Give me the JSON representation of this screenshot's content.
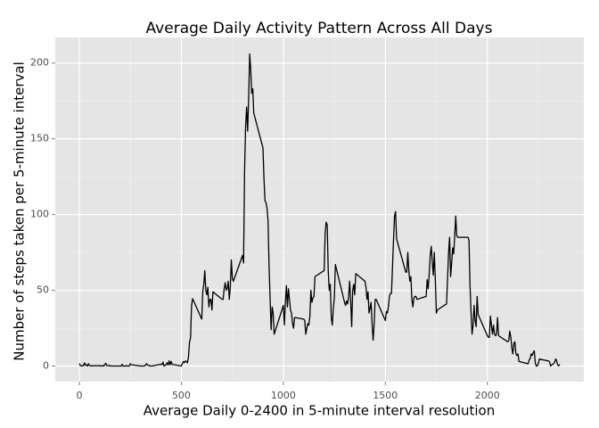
{
  "chart_data": {
    "type": "line",
    "title": "Average Daily Activity Pattern Across All Days",
    "xlabel": "Average Daily 0-2400 in 5-minute interval resolution",
    "ylabel": "Number of steps taken per 5-minute interval",
    "xlim": [
      -118,
      2473
    ],
    "ylim": [
      -10.3,
      216.9
    ],
    "xticks": [
      0,
      500,
      1000,
      1500,
      2000
    ],
    "yticks": [
      0,
      50,
      100,
      150,
      200
    ],
    "xminor": [
      250,
      750,
      1250,
      1750,
      2250
    ],
    "yminor": [
      25,
      75,
      125,
      175
    ],
    "grid": true,
    "series": [
      {
        "color": "#000000",
        "x": [
          0,
          5,
          10,
          15,
          20,
          25,
          30,
          35,
          40,
          45,
          50,
          55,
          100,
          105,
          110,
          115,
          120,
          125,
          130,
          135,
          140,
          145,
          150,
          155,
          200,
          205,
          210,
          215,
          220,
          225,
          230,
          235,
          240,
          245,
          250,
          255,
          300,
          305,
          310,
          315,
          320,
          325,
          330,
          335,
          340,
          345,
          350,
          355,
          400,
          405,
          410,
          415,
          420,
          425,
          430,
          435,
          440,
          445,
          450,
          455,
          500,
          505,
          510,
          515,
          520,
          525,
          530,
          535,
          540,
          545,
          550,
          555,
          600,
          605,
          610,
          615,
          620,
          625,
          630,
          635,
          640,
          645,
          650,
          655,
          700,
          705,
          710,
          715,
          720,
          725,
          730,
          735,
          740,
          745,
          750,
          755,
          800,
          805,
          810,
          815,
          820,
          825,
          830,
          835,
          840,
          845,
          850,
          855,
          900,
          905,
          910,
          915,
          920,
          925,
          930,
          935,
          940,
          945,
          950,
          955,
          1000,
          1005,
          1010,
          1015,
          1020,
          1025,
          1030,
          1035,
          1040,
          1045,
          1050,
          1055,
          1100,
          1105,
          1110,
          1115,
          1120,
          1125,
          1130,
          1135,
          1140,
          1145,
          1150,
          1155,
          1200,
          1205,
          1210,
          1215,
          1220,
          1225,
          1230,
          1235,
          1240,
          1245,
          1250,
          1255,
          1300,
          1305,
          1310,
          1315,
          1320,
          1325,
          1330,
          1335,
          1340,
          1345,
          1350,
          1355,
          1400,
          1405,
          1410,
          1415,
          1420,
          1425,
          1430,
          1435,
          1440,
          1445,
          1450,
          1455,
          1500,
          1505,
          1510,
          1515,
          1520,
          1525,
          1530,
          1535,
          1540,
          1545,
          1550,
          1555,
          1600,
          1605,
          1610,
          1615,
          1620,
          1625,
          1630,
          1635,
          1640,
          1645,
          1650,
          1655,
          1700,
          1705,
          1710,
          1715,
          1720,
          1725,
          1730,
          1735,
          1740,
          1745,
          1750,
          1755,
          1800,
          1805,
          1810,
          1815,
          1820,
          1825,
          1830,
          1835,
          1840,
          1845,
          1850,
          1855,
          1900,
          1905,
          1910,
          1915,
          1920,
          1925,
          1930,
          1935,
          1940,
          1945,
          1950,
          1955,
          2000,
          2005,
          2010,
          2015,
          2020,
          2025,
          2030,
          2035,
          2040,
          2045,
          2050,
          2055,
          2100,
          2105,
          2110,
          2115,
          2120,
          2125,
          2130,
          2135,
          2140,
          2145,
          2150,
          2155,
          2200,
          2205,
          2210,
          2215,
          2220,
          2225,
          2230,
          2235,
          2240,
          2245,
          2250,
          2255,
          2300,
          2305,
          2310,
          2315,
          2320,
          2325,
          2330,
          2335,
          2340,
          2345,
          2350,
          2355
        ],
        "values": [
          1.7,
          0.3,
          0.1,
          0.2,
          0.1,
          2.1,
          0.5,
          0.9,
          0,
          1.5,
          0.3,
          0.1,
          0.3,
          0,
          0.1,
          0.3,
          0,
          1.1,
          1.8,
          0.2,
          0.2,
          0.4,
          0.3,
          0,
          0,
          0,
          1.1,
          0,
          0,
          0.1,
          0,
          0.2,
          0,
          0,
          1.5,
          0.9,
          0,
          0,
          0,
          0,
          0.2,
          0.6,
          1.6,
          0.6,
          0.5,
          0.1,
          0,
          0,
          1.2,
          0.9,
          2.6,
          0,
          0.3,
          0.9,
          2.1,
          0.7,
          3.4,
          0.8,
          3.1,
          1.1,
          0,
          1.6,
          3,
          2.2,
          3.3,
          3,
          2.1,
          6,
          16,
          18.3,
          39.5,
          44.5,
          31,
          49,
          54,
          63,
          50,
          47,
          52,
          39,
          44,
          44,
          37,
          49,
          44,
          44,
          51,
          55,
          50,
          51,
          56,
          44,
          52,
          70,
          58,
          56,
          73,
          68,
          129,
          158,
          171,
          155,
          177,
          206,
          196,
          180,
          183,
          167,
          144,
          124,
          109,
          108,
          104,
          96,
          66,
          45,
          24,
          39,
          35,
          21,
          40,
          27,
          42,
          53,
          39,
          51,
          44,
          37,
          35,
          28,
          25,
          32,
          31,
          30,
          21,
          25,
          28,
          27,
          33,
          50,
          42,
          45,
          46,
          59,
          63,
          88,
          95,
          93,
          63,
          50,
          54,
          32,
          27,
          38,
          45,
          67,
          42,
          40,
          43,
          41,
          46,
          56,
          43,
          26,
          50,
          54,
          47,
          61,
          56,
          52,
          44,
          49,
          35,
          38,
          42,
          28,
          17,
          27,
          44,
          44,
          30,
          36,
          35,
          39,
          46,
          48,
          48,
          65,
          83,
          99,
          102,
          84,
          62,
          62,
          75,
          63,
          56,
          59,
          44,
          39,
          45,
          46,
          46,
          44,
          46,
          57,
          51,
          61,
          73,
          79,
          69,
          60,
          75,
          57,
          35,
          37,
          41,
          58,
          75,
          85,
          59,
          68,
          78,
          74,
          86,
          99,
          86,
          85,
          85,
          85,
          83,
          53,
          36,
          21,
          27,
          40,
          30,
          26,
          46,
          34,
          20,
          19,
          19,
          33,
          27,
          21,
          27,
          21,
          20,
          21,
          32,
          20,
          16,
          17,
          23,
          19,
          12,
          8,
          15,
          16,
          8,
          7,
          8,
          3,
          1.5,
          4,
          5,
          8,
          7,
          9,
          10,
          2,
          0,
          0.1,
          1.6,
          4.6,
          3.3,
          2.8,
          0,
          0.8,
          1,
          1.6,
          2.6,
          4.7,
          3.3,
          0.6,
          0.2,
          1.1
        ]
      }
    ]
  }
}
